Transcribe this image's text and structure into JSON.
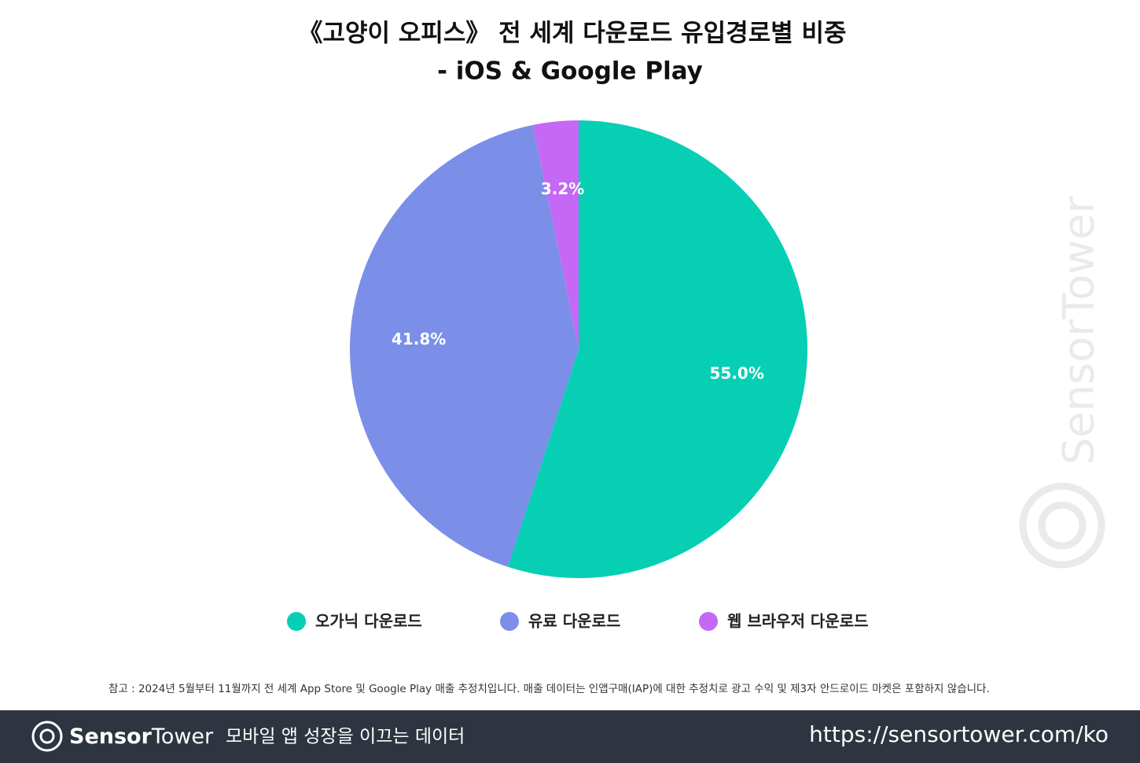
{
  "chart_data": {
    "type": "pie",
    "title": "《고양이 오피스》 전 세계 다운로드 유입경로별 비중",
    "subtitle": "- iOS & Google Play",
    "categories": [
      "오가닉 다운로드",
      "유료 다운로드",
      "웹 브라우저 다운로드"
    ],
    "values": [
      55.0,
      41.8,
      3.2
    ],
    "value_labels": [
      "55.0%",
      "41.8%",
      "3.2%"
    ],
    "colors": [
      "#06cfb4",
      "#7b8fe8",
      "#c468f5"
    ],
    "legend": "bottom",
    "note": "참고 : 2024년 5월부터 11월까지 전 세계 App Store 및 Google Play 매출 추정치입니다. 매출 데이터는 인앱구매(IAP)에 대한 추정치로 광고 수익 및 제3자 안드로이드 마켓은 포함하지 않습니다."
  },
  "watermark": "SensorTower",
  "footer": {
    "brand_bold": "Sensor",
    "brand_light": "Tower",
    "tagline": "모바일 앱 성장을 이끄는 데이터",
    "url": "https://sensortower.com/ko"
  }
}
